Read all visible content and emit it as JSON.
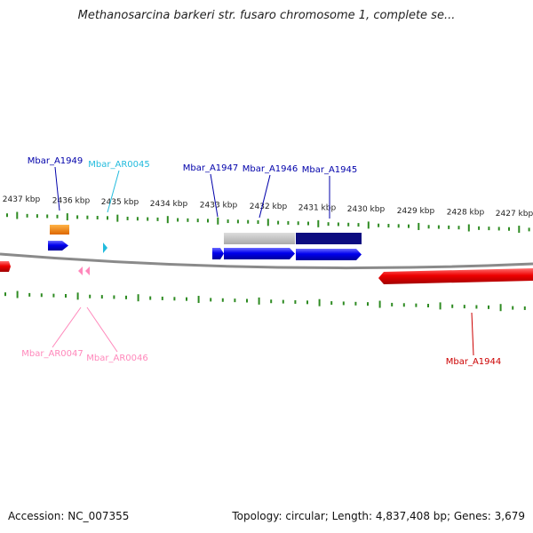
{
  "title": "Methanosarcina barkeri str. fusaro chromosome 1, complete se...",
  "footer": {
    "accession": "Accession: NC_007355",
    "summary": "Topology: circular; Length: 4,837,408 bp; Genes: 3,679"
  },
  "colors": {
    "backbone": "#8a8a8a",
    "tick": "#2e8b22",
    "forward_gene": "#0000ee",
    "reverse_gene": "#ee0000",
    "tRNA": "#22bbdd",
    "tRNA_reverse": "#ff88bb",
    "gray_feature": "#bdbdbd",
    "navy_feature": "#0c0c80",
    "orange_feature": "#ff8800"
  },
  "ruler": {
    "labels": [
      "2437 kbp",
      "2436 kbp",
      "2435 kbp",
      "2434 kbp",
      "2433 kbp",
      "2432 kbp",
      "2431 kbp",
      "2430 kbp",
      "2429 kbp",
      "2428 kbp",
      "2427 kbp"
    ]
  },
  "gene_labels": [
    {
      "id": "Mbar_A1949",
      "text": "Mbar_A1949",
      "color": "#0000aa"
    },
    {
      "id": "Mbar_AR0045",
      "text": "Mbar_AR0045",
      "color": "#22bbdd"
    },
    {
      "id": "Mbar_A1947",
      "text": "Mbar_A1947",
      "color": "#0000aa"
    },
    {
      "id": "Mbar_A1946",
      "text": "Mbar_A1946",
      "color": "#0000aa"
    },
    {
      "id": "Mbar_A1945",
      "text": "Mbar_A1945",
      "color": "#0000aa"
    },
    {
      "id": "Mbar_AR0047",
      "text": "Mbar_AR0047",
      "color": "#ff88bb"
    },
    {
      "id": "Mbar_AR0046",
      "text": "Mbar_AR0046",
      "color": "#ff88bb"
    },
    {
      "id": "Mbar_A1944",
      "text": "Mbar_A1944",
      "color": "#cc0000"
    }
  ]
}
